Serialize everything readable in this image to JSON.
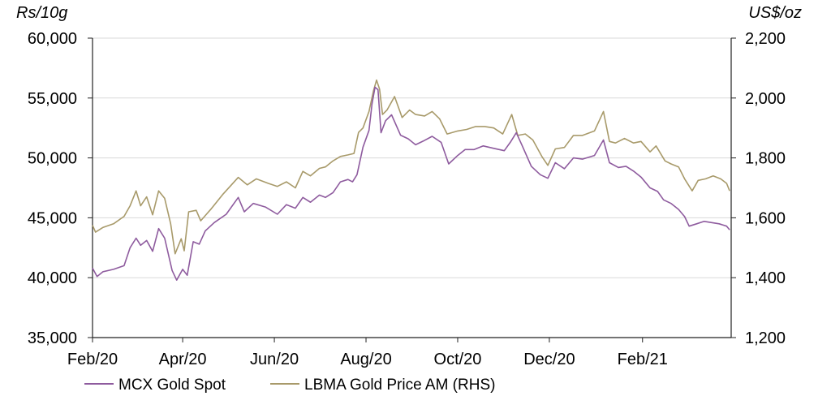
{
  "chart_data": {
    "type": "line",
    "title": "",
    "y_left_label": "Rs/10g",
    "y_right_label": "US$/oz",
    "y_left_lim": [
      35000,
      60000
    ],
    "y_right_lim": [
      1200,
      2200
    ],
    "y_left_ticks": [
      "35,000",
      "40,000",
      "45,000",
      "50,000",
      "55,000",
      "60,000"
    ],
    "y_right_ticks": [
      "1,200",
      "1,400",
      "1,600",
      "1,800",
      "2,000",
      "2,200"
    ],
    "x_ticks": [
      "Feb/20",
      "Apr/20",
      "Jun/20",
      "Aug/20",
      "Oct/20",
      "Dec/20",
      "Feb/21"
    ],
    "grid": "horizontal",
    "legend_position": "bottom",
    "colors": {
      "mcx": "#8e5b9e",
      "lbma": "#a89a6a",
      "grid": "#d9d9d9",
      "axis": "#222222"
    },
    "series": [
      {
        "name": "MCX Gold Spot",
        "axis": "left",
        "points": [
          [
            "2020-02-01",
            40800
          ],
          [
            "2020-02-04",
            40100
          ],
          [
            "2020-02-08",
            40500
          ],
          [
            "2020-02-15",
            40700
          ],
          [
            "2020-02-22",
            41000
          ],
          [
            "2020-02-26",
            42500
          ],
          [
            "2020-03-01",
            43300
          ],
          [
            "2020-03-04",
            42700
          ],
          [
            "2020-03-08",
            43100
          ],
          [
            "2020-03-12",
            42200
          ],
          [
            "2020-03-16",
            44100
          ],
          [
            "2020-03-20",
            43300
          ],
          [
            "2020-03-25",
            40600
          ],
          [
            "2020-03-28",
            39800
          ],
          [
            "2020-04-01",
            40700
          ],
          [
            "2020-04-04",
            40200
          ],
          [
            "2020-04-08",
            43000
          ],
          [
            "2020-04-12",
            42800
          ],
          [
            "2020-04-16",
            43900
          ],
          [
            "2020-04-22",
            44600
          ],
          [
            "2020-04-30",
            45300
          ],
          [
            "2020-05-08",
            46700
          ],
          [
            "2020-05-12",
            45500
          ],
          [
            "2020-05-18",
            46200
          ],
          [
            "2020-05-26",
            45900
          ],
          [
            "2020-06-03",
            45300
          ],
          [
            "2020-06-09",
            46100
          ],
          [
            "2020-06-15",
            45800
          ],
          [
            "2020-06-20",
            46700
          ],
          [
            "2020-06-25",
            46300
          ],
          [
            "2020-07-01",
            46900
          ],
          [
            "2020-07-05",
            46700
          ],
          [
            "2020-07-10",
            47100
          ],
          [
            "2020-07-15",
            48000
          ],
          [
            "2020-07-20",
            48200
          ],
          [
            "2020-07-23",
            48000
          ],
          [
            "2020-07-26",
            48600
          ],
          [
            "2020-07-30",
            50900
          ],
          [
            "2020-08-03",
            52300
          ],
          [
            "2020-08-05",
            54500
          ],
          [
            "2020-08-07",
            55900
          ],
          [
            "2020-08-09",
            55700
          ],
          [
            "2020-08-11",
            52100
          ],
          [
            "2020-08-14",
            53100
          ],
          [
            "2020-08-18",
            53600
          ],
          [
            "2020-08-24",
            51900
          ],
          [
            "2020-08-29",
            51600
          ],
          [
            "2020-09-03",
            51100
          ],
          [
            "2020-09-08",
            51400
          ],
          [
            "2020-09-14",
            51800
          ],
          [
            "2020-09-20",
            51300
          ],
          [
            "2020-09-25",
            49500
          ],
          [
            "2020-10-01",
            50200
          ],
          [
            "2020-10-06",
            50700
          ],
          [
            "2020-10-12",
            50700
          ],
          [
            "2020-10-18",
            51000
          ],
          [
            "2020-10-25",
            50800
          ],
          [
            "2020-11-01",
            50600
          ],
          [
            "2020-11-05",
            51300
          ],
          [
            "2020-11-09",
            52100
          ],
          [
            "2020-11-13",
            51000
          ],
          [
            "2020-11-19",
            49300
          ],
          [
            "2020-11-25",
            48600
          ],
          [
            "2020-11-30",
            48300
          ],
          [
            "2020-12-05",
            49600
          ],
          [
            "2020-12-11",
            49100
          ],
          [
            "2020-12-17",
            50000
          ],
          [
            "2020-12-23",
            49900
          ],
          [
            "2020-12-31",
            50200
          ],
          [
            "2021-01-06",
            51500
          ],
          [
            "2021-01-10",
            49600
          ],
          [
            "2021-01-16",
            49200
          ],
          [
            "2021-01-21",
            49300
          ],
          [
            "2021-01-26",
            48900
          ],
          [
            "2021-01-31",
            48400
          ],
          [
            "2021-02-06",
            47500
          ],
          [
            "2021-02-11",
            47200
          ],
          [
            "2021-02-15",
            46500
          ],
          [
            "2021-02-20",
            46200
          ],
          [
            "2021-02-25",
            45700
          ],
          [
            "2021-03-01",
            45100
          ],
          [
            "2021-03-04",
            44300
          ],
          [
            "2021-03-09",
            44500
          ],
          [
            "2021-03-14",
            44700
          ],
          [
            "2021-03-19",
            44600
          ],
          [
            "2021-03-24",
            44500
          ],
          [
            "2021-03-29",
            44300
          ],
          [
            "2021-03-31",
            44000
          ]
        ]
      },
      {
        "name": "LBMA Gold Price AM (RHS)",
        "axis": "right",
        "points": [
          [
            "2020-02-01",
            1575
          ],
          [
            "2020-02-03",
            1552
          ],
          [
            "2020-02-08",
            1568
          ],
          [
            "2020-02-15",
            1580
          ],
          [
            "2020-02-22",
            1605
          ],
          [
            "2020-02-26",
            1640
          ],
          [
            "2020-03-01",
            1690
          ],
          [
            "2020-03-04",
            1640
          ],
          [
            "2020-03-08",
            1670
          ],
          [
            "2020-03-12",
            1610
          ],
          [
            "2020-03-16",
            1690
          ],
          [
            "2020-03-20",
            1665
          ],
          [
            "2020-03-24",
            1580
          ],
          [
            "2020-03-27",
            1480
          ],
          [
            "2020-03-31",
            1530
          ],
          [
            "2020-04-02",
            1490
          ],
          [
            "2020-04-05",
            1620
          ],
          [
            "2020-04-10",
            1625
          ],
          [
            "2020-04-13",
            1590
          ],
          [
            "2020-04-20",
            1630
          ],
          [
            "2020-04-28",
            1680
          ],
          [
            "2020-05-08",
            1735
          ],
          [
            "2020-05-14",
            1710
          ],
          [
            "2020-05-20",
            1730
          ],
          [
            "2020-05-28",
            1715
          ],
          [
            "2020-06-03",
            1705
          ],
          [
            "2020-06-09",
            1720
          ],
          [
            "2020-06-15",
            1700
          ],
          [
            "2020-06-20",
            1755
          ],
          [
            "2020-06-25",
            1740
          ],
          [
            "2020-07-01",
            1765
          ],
          [
            "2020-07-05",
            1770
          ],
          [
            "2020-07-10",
            1790
          ],
          [
            "2020-07-15",
            1805
          ],
          [
            "2020-07-20",
            1810
          ],
          [
            "2020-07-24",
            1815
          ],
          [
            "2020-07-27",
            1885
          ],
          [
            "2020-07-30",
            1900
          ],
          [
            "2020-08-03",
            1955
          ],
          [
            "2020-08-06",
            2025
          ],
          [
            "2020-08-08",
            2060
          ],
          [
            "2020-08-10",
            2030
          ],
          [
            "2020-08-12",
            1945
          ],
          [
            "2020-08-15",
            1960
          ],
          [
            "2020-08-20",
            2005
          ],
          [
            "2020-08-25",
            1935
          ],
          [
            "2020-08-30",
            1960
          ],
          [
            "2020-09-03",
            1945
          ],
          [
            "2020-09-09",
            1940
          ],
          [
            "2020-09-14",
            1955
          ],
          [
            "2020-09-19",
            1930
          ],
          [
            "2020-09-24",
            1880
          ],
          [
            "2020-10-01",
            1890
          ],
          [
            "2020-10-07",
            1895
          ],
          [
            "2020-10-13",
            1905
          ],
          [
            "2020-10-19",
            1905
          ],
          [
            "2020-10-25",
            1900
          ],
          [
            "2020-10-31",
            1880
          ],
          [
            "2020-11-06",
            1945
          ],
          [
            "2020-11-10",
            1875
          ],
          [
            "2020-11-15",
            1880
          ],
          [
            "2020-11-20",
            1860
          ],
          [
            "2020-11-26",
            1805
          ],
          [
            "2020-11-30",
            1775
          ],
          [
            "2020-12-05",
            1830
          ],
          [
            "2020-12-11",
            1835
          ],
          [
            "2020-12-17",
            1875
          ],
          [
            "2020-12-23",
            1875
          ],
          [
            "2020-12-31",
            1890
          ],
          [
            "2021-01-06",
            1955
          ],
          [
            "2021-01-10",
            1855
          ],
          [
            "2021-01-14",
            1850
          ],
          [
            "2021-01-20",
            1865
          ],
          [
            "2021-01-26",
            1850
          ],
          [
            "2021-01-31",
            1855
          ],
          [
            "2021-02-06",
            1820
          ],
          [
            "2021-02-10",
            1840
          ],
          [
            "2021-02-16",
            1790
          ],
          [
            "2021-02-20",
            1780
          ],
          [
            "2021-02-25",
            1770
          ],
          [
            "2021-03-01",
            1730
          ],
          [
            "2021-03-06",
            1690
          ],
          [
            "2021-03-10",
            1725
          ],
          [
            "2021-03-15",
            1730
          ],
          [
            "2021-03-20",
            1740
          ],
          [
            "2021-03-25",
            1730
          ],
          [
            "2021-03-29",
            1715
          ],
          [
            "2021-03-31",
            1690
          ]
        ]
      }
    ]
  }
}
